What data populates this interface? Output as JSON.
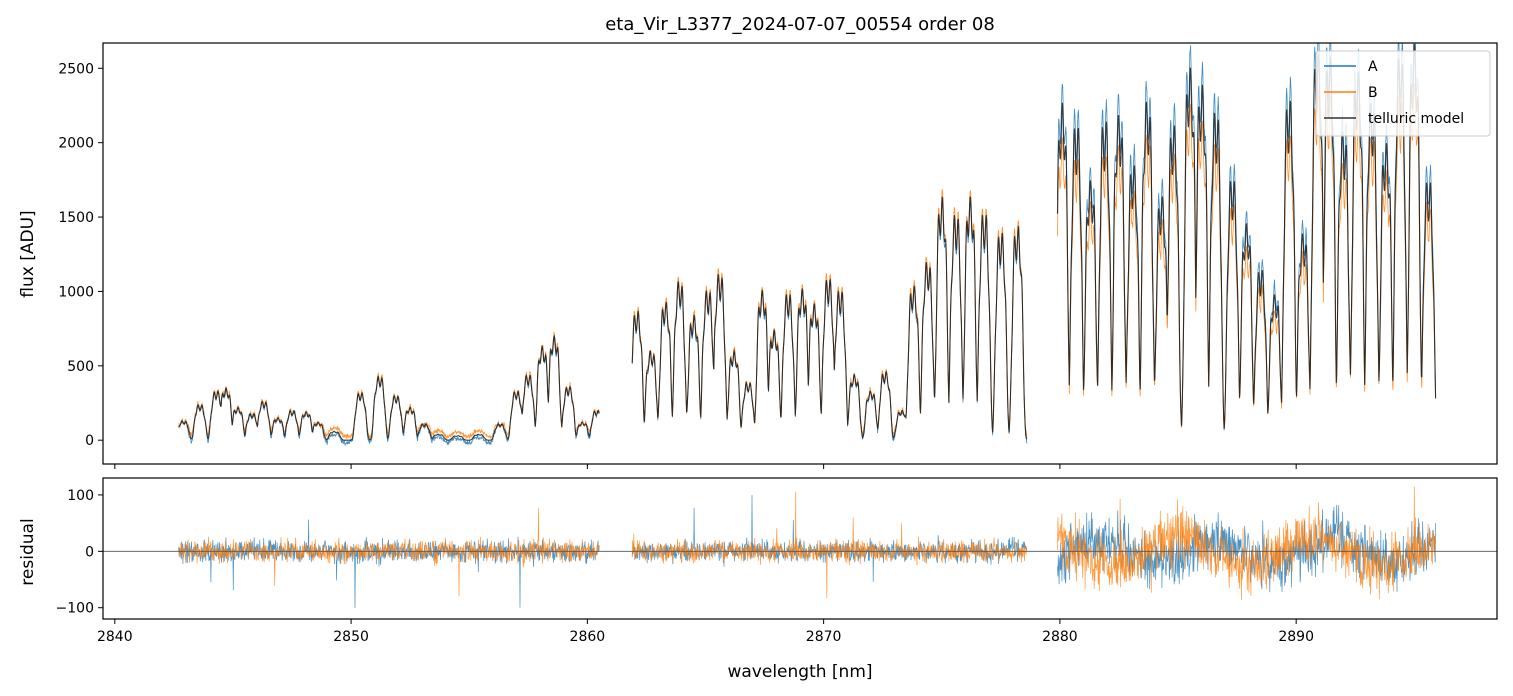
{
  "chart_data": {
    "type": "line",
    "title": "eta_Vir_L3377_2024-07-07_00554  order 08",
    "xlabel": "wavelength [nm]",
    "xlim": [
      2839.5,
      2898.5
    ],
    "x_ticks": [
      "2840",
      "2850",
      "2860",
      "2870",
      "2880",
      "2890"
    ],
    "top_panel": {
      "ylabel": "flux [ADU]",
      "ylim": [
        -160,
        2670
      ],
      "y_ticks": [
        "0",
        "500",
        "1000",
        "1500",
        "2000",
        "2500"
      ],
      "legend_position": "top-right",
      "series": [
        {
          "name": "A",
          "color": "#1f77b4"
        },
        {
          "name": "B",
          "color": "#ff7f0e"
        },
        {
          "name": "telluric model",
          "color": "#333333"
        }
      ],
      "segments": [
        {
          "x_start": 2842.7,
          "x_end": 2860.5,
          "peaks": [
            [
              2842.9,
              130
            ],
            [
              2843.6,
              240
            ],
            [
              2844.3,
              330
            ],
            [
              2844.7,
              350
            ],
            [
              2845.2,
              220
            ],
            [
              2845.8,
              180
            ],
            [
              2846.3,
              260
            ],
            [
              2846.9,
              150
            ],
            [
              2847.5,
              200
            ],
            [
              2848.1,
              190
            ],
            [
              2848.6,
              120
            ],
            [
              2849.3,
              60
            ],
            [
              2850.4,
              320
            ],
            [
              2851.2,
              430
            ],
            [
              2851.9,
              300
            ],
            [
              2852.5,
              220
            ],
            [
              2853.1,
              110
            ],
            [
              2853.7,
              40
            ],
            [
              2854.5,
              30
            ],
            [
              2855.4,
              40
            ],
            [
              2856.3,
              110
            ],
            [
              2857.0,
              330
            ],
            [
              2857.5,
              440
            ],
            [
              2858.1,
              630
            ],
            [
              2858.6,
              700
            ],
            [
              2859.2,
              360
            ],
            [
              2859.8,
              120
            ],
            [
              2860.4,
              200
            ]
          ]
        },
        {
          "x_start": 2861.9,
          "x_end": 2878.6,
          "peaks": [
            [
              2862.1,
              870
            ],
            [
              2862.7,
              600
            ],
            [
              2863.3,
              930
            ],
            [
              2863.9,
              1070
            ],
            [
              2864.5,
              840
            ],
            [
              2865.1,
              1010
            ],
            [
              2865.6,
              1120
            ],
            [
              2866.2,
              600
            ],
            [
              2866.8,
              390
            ],
            [
              2867.4,
              1010
            ],
            [
              2867.9,
              740
            ],
            [
              2868.5,
              990
            ],
            [
              2869.1,
              1020
            ],
            [
              2869.6,
              920
            ],
            [
              2870.2,
              1090
            ],
            [
              2870.7,
              1010
            ],
            [
              2871.3,
              440
            ],
            [
              2872.0,
              330
            ],
            [
              2872.6,
              460
            ],
            [
              2873.3,
              200
            ],
            [
              2873.8,
              1040
            ],
            [
              2874.4,
              1200
            ],
            [
              2875.0,
              1640
            ],
            [
              2875.6,
              1520
            ],
            [
              2876.2,
              1640
            ],
            [
              2876.8,
              1530
            ],
            [
              2877.5,
              1400
            ],
            [
              2878.2,
              1440
            ]
          ]
        },
        {
          "x_start": 2879.9,
          "x_end": 2895.9,
          "peaks": [
            [
              2880.1,
              2270
            ],
            [
              2880.7,
              2120
            ],
            [
              2881.3,
              1750
            ],
            [
              2881.9,
              2150
            ],
            [
              2882.5,
              2190
            ],
            [
              2883.1,
              1850
            ],
            [
              2883.7,
              2280
            ],
            [
              2884.3,
              1640
            ],
            [
              2884.8,
              2120
            ],
            [
              2885.5,
              2510
            ],
            [
              2886.0,
              2390
            ],
            [
              2886.6,
              2210
            ],
            [
              2887.3,
              1760
            ],
            [
              2887.9,
              1460
            ],
            [
              2888.5,
              1150
            ],
            [
              2889.1,
              980
            ],
            [
              2889.7,
              2290
            ],
            [
              2890.3,
              1390
            ],
            [
              2890.9,
              2610
            ],
            [
              2891.4,
              2580
            ],
            [
              2892.0,
              2080
            ],
            [
              2892.6,
              2480
            ],
            [
              2893.2,
              2270
            ],
            [
              2893.8,
              2000
            ],
            [
              2894.4,
              2580
            ],
            [
              2895.0,
              2670
            ],
            [
              2895.6,
              1750
            ]
          ]
        }
      ]
    },
    "bottom_panel": {
      "ylabel": "residual",
      "ylim": [
        -120,
        130
      ],
      "y_ticks": [
        "100",
        "0",
        "−100"
      ],
      "zero_line": true,
      "series": [
        {
          "name": "A",
          "color": "#1f77b4"
        },
        {
          "name": "B",
          "color": "#ff7f0e"
        }
      ]
    }
  }
}
